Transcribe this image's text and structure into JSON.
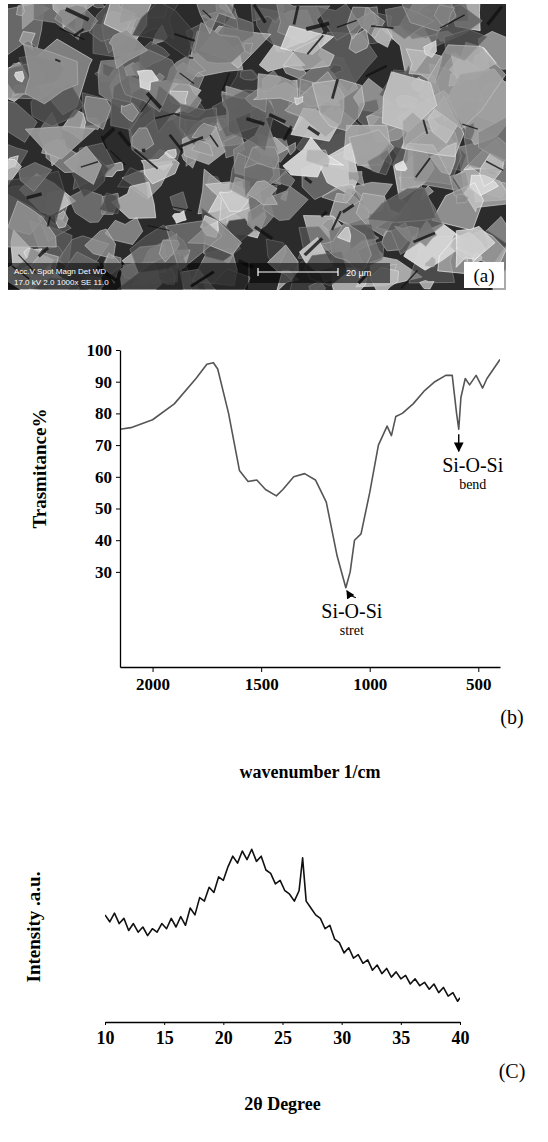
{
  "image": {
    "panel": "(a)",
    "header": "Acc.V Spot Magn Det WD",
    "settings": "17.0 kV 2.0 1000x SE 11.0",
    "scale_bar": "20 µm"
  },
  "chart_data": [
    {
      "type": "line",
      "panel": "(b)",
      "x_label": "wavenumber 1/cm",
      "y_label": "Trasmitance%",
      "x": [
        2150,
        2100,
        2000,
        1900,
        1800,
        1750,
        1720,
        1700,
        1650,
        1600,
        1560,
        1520,
        1480,
        1430,
        1400,
        1350,
        1300,
        1250,
        1200,
        1150,
        1110,
        1090,
        1070,
        1040,
        1000,
        960,
        920,
        900,
        880,
        850,
        800,
        750,
        700,
        650,
        620,
        600,
        590,
        580,
        560,
        540,
        510,
        480,
        460,
        430,
        400
      ],
      "values": [
        75,
        75.5,
        78,
        83,
        91,
        95.5,
        96,
        94,
        80,
        62,
        58.5,
        59,
        56,
        54,
        56,
        60,
        61,
        59,
        52,
        35,
        25,
        30,
        40,
        42,
        55,
        70,
        76,
        73,
        79,
        80,
        83,
        87,
        90,
        92,
        92,
        80,
        75,
        85,
        91,
        89,
        92,
        88,
        91,
        94,
        97
      ],
      "color": "#555555",
      "xlim": [
        2150,
        400
      ],
      "xticks": [
        2000,
        1500,
        1000,
        500
      ],
      "ylim": [
        0,
        100
      ],
      "yticks": [
        30,
        40,
        50,
        60,
        70,
        80,
        90,
        100
      ],
      "annotations": [
        {
          "text": "Si-O-Si",
          "subtext": "stret",
          "x": 1110,
          "y": 25
        },
        {
          "text": "Si-O-Si",
          "subtext": "bend",
          "x": 590,
          "y": 75
        }
      ]
    },
    {
      "type": "line",
      "panel": "(C)",
      "x_label": "2θ Degree",
      "y_label": "Intensity .a.u.",
      "x": [
        10,
        10.4,
        10.8,
        11.2,
        11.6,
        12,
        12.4,
        12.8,
        13.2,
        13.6,
        14,
        14.4,
        14.8,
        15.2,
        15.6,
        16,
        16.4,
        16.8,
        17.2,
        17.6,
        18,
        18.4,
        18.8,
        19.2,
        19.6,
        20,
        20.4,
        20.8,
        21.2,
        21.6,
        22,
        22.4,
        22.8,
        23.2,
        23.6,
        24,
        24.4,
        24.8,
        25.2,
        25.6,
        26,
        26.4,
        26.7,
        27,
        27.4,
        27.8,
        28.2,
        28.6,
        29,
        29.4,
        29.8,
        30.2,
        30.6,
        31,
        31.4,
        31.8,
        32.2,
        32.6,
        33,
        33.4,
        33.8,
        34.2,
        34.6,
        35,
        35.4,
        35.8,
        36.2,
        36.6,
        37,
        37.4,
        37.8,
        38.2,
        38.6,
        39,
        39.4,
        39.8,
        40
      ],
      "values": [
        62,
        58,
        63,
        57,
        60,
        53,
        57,
        52,
        55,
        50,
        54,
        52,
        57,
        54,
        60,
        55,
        61,
        56,
        66,
        62,
        72,
        70,
        78,
        75,
        84,
        82,
        90,
        96,
        92,
        99,
        94,
        100,
        93,
        96,
        88,
        86,
        80,
        82,
        76,
        74,
        70,
        76,
        95,
        70,
        66,
        62,
        60,
        54,
        56,
        48,
        46,
        40,
        43,
        37,
        39,
        34,
        36,
        30,
        33,
        28,
        31,
        26,
        29,
        25,
        27,
        22,
        25,
        21,
        23,
        19,
        22,
        17,
        20,
        15,
        17,
        12,
        14
      ],
      "color": "#111111",
      "xlim": [
        10,
        40
      ],
      "xticks": [
        10,
        15,
        20,
        25,
        30,
        35,
        40
      ],
      "ylim": [
        0,
        110
      ],
      "tick_labels": "x"
    }
  ]
}
